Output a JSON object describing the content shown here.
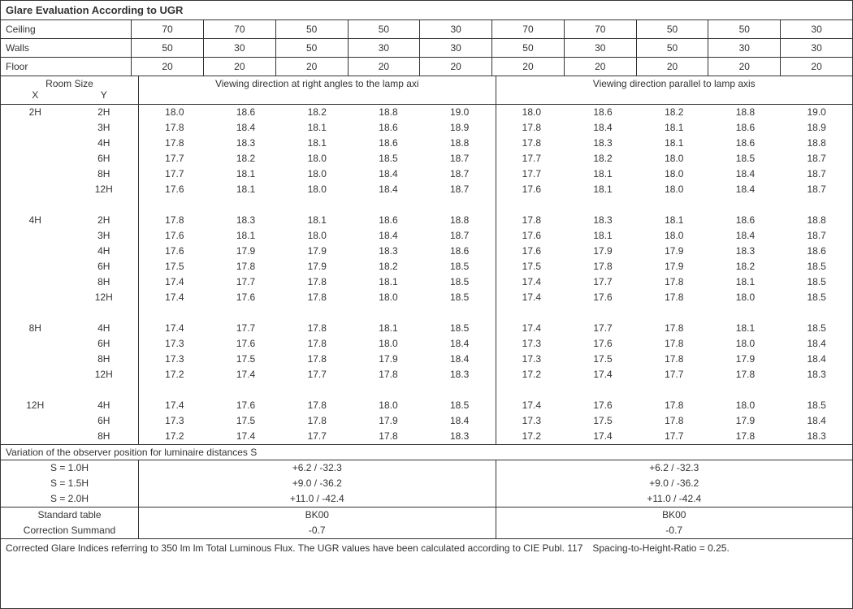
{
  "title": "Glare Evaluation According to UGR",
  "header": {
    "labels": [
      "Ceiling",
      "Walls",
      "Floor"
    ],
    "cols_left": [
      [
        "70",
        "70",
        "50",
        "50",
        "30"
      ],
      [
        "50",
        "30",
        "50",
        "30",
        "30"
      ],
      [
        "20",
        "20",
        "20",
        "20",
        "20"
      ]
    ],
    "cols_right": [
      [
        "70",
        "70",
        "50",
        "50",
        "30"
      ],
      [
        "50",
        "30",
        "50",
        "30",
        "30"
      ],
      [
        "20",
        "20",
        "20",
        "20",
        "20"
      ]
    ]
  },
  "room_size_label": "Room Size",
  "x_label": "X",
  "y_label": "Y",
  "viewing_left": "Viewing direction at right angles to the lamp axi",
  "viewing_right": "Viewing direction parallel to lamp axis",
  "groups": [
    {
      "x": "2H",
      "rows": [
        {
          "y": "2H",
          "l": [
            "18.0",
            "18.6",
            "18.2",
            "18.8",
            "19.0"
          ],
          "r": [
            "18.0",
            "18.6",
            "18.2",
            "18.8",
            "19.0"
          ]
        },
        {
          "y": "3H",
          "l": [
            "17.8",
            "18.4",
            "18.1",
            "18.6",
            "18.9"
          ],
          "r": [
            "17.8",
            "18.4",
            "18.1",
            "18.6",
            "18.9"
          ]
        },
        {
          "y": "4H",
          "l": [
            "17.8",
            "18.3",
            "18.1",
            "18.6",
            "18.8"
          ],
          "r": [
            "17.8",
            "18.3",
            "18.1",
            "18.6",
            "18.8"
          ]
        },
        {
          "y": "6H",
          "l": [
            "17.7",
            "18.2",
            "18.0",
            "18.5",
            "18.7"
          ],
          "r": [
            "17.7",
            "18.2",
            "18.0",
            "18.5",
            "18.7"
          ]
        },
        {
          "y": "8H",
          "l": [
            "17.7",
            "18.1",
            "18.0",
            "18.4",
            "18.7"
          ],
          "r": [
            "17.7",
            "18.1",
            "18.0",
            "18.4",
            "18.7"
          ]
        },
        {
          "y": "12H",
          "l": [
            "17.6",
            "18.1",
            "18.0",
            "18.4",
            "18.7"
          ],
          "r": [
            "17.6",
            "18.1",
            "18.0",
            "18.4",
            "18.7"
          ]
        }
      ]
    },
    {
      "x": "4H",
      "rows": [
        {
          "y": "2H",
          "l": [
            "17.8",
            "18.3",
            "18.1",
            "18.6",
            "18.8"
          ],
          "r": [
            "17.8",
            "18.3",
            "18.1",
            "18.6",
            "18.8"
          ]
        },
        {
          "y": "3H",
          "l": [
            "17.6",
            "18.1",
            "18.0",
            "18.4",
            "18.7"
          ],
          "r": [
            "17.6",
            "18.1",
            "18.0",
            "18.4",
            "18.7"
          ]
        },
        {
          "y": "4H",
          "l": [
            "17.6",
            "17.9",
            "17.9",
            "18.3",
            "18.6"
          ],
          "r": [
            "17.6",
            "17.9",
            "17.9",
            "18.3",
            "18.6"
          ]
        },
        {
          "y": "6H",
          "l": [
            "17.5",
            "17.8",
            "17.9",
            "18.2",
            "18.5"
          ],
          "r": [
            "17.5",
            "17.8",
            "17.9",
            "18.2",
            "18.5"
          ]
        },
        {
          "y": "8H",
          "l": [
            "17.4",
            "17.7",
            "17.8",
            "18.1",
            "18.5"
          ],
          "r": [
            "17.4",
            "17.7",
            "17.8",
            "18.1",
            "18.5"
          ]
        },
        {
          "y": "12H",
          "l": [
            "17.4",
            "17.6",
            "17.8",
            "18.0",
            "18.5"
          ],
          "r": [
            "17.4",
            "17.6",
            "17.8",
            "18.0",
            "18.5"
          ]
        }
      ]
    },
    {
      "x": "8H",
      "rows": [
        {
          "y": "4H",
          "l": [
            "17.4",
            "17.7",
            "17.8",
            "18.1",
            "18.5"
          ],
          "r": [
            "17.4",
            "17.7",
            "17.8",
            "18.1",
            "18.5"
          ]
        },
        {
          "y": "6H",
          "l": [
            "17.3",
            "17.6",
            "17.8",
            "18.0",
            "18.4"
          ],
          "r": [
            "17.3",
            "17.6",
            "17.8",
            "18.0",
            "18.4"
          ]
        },
        {
          "y": "8H",
          "l": [
            "17.3",
            "17.5",
            "17.8",
            "17.9",
            "18.4"
          ],
          "r": [
            "17.3",
            "17.5",
            "17.8",
            "17.9",
            "18.4"
          ]
        },
        {
          "y": "12H",
          "l": [
            "17.2",
            "17.4",
            "17.7",
            "17.8",
            "18.3"
          ],
          "r": [
            "17.2",
            "17.4",
            "17.7",
            "17.8",
            "18.3"
          ]
        }
      ]
    },
    {
      "x": "12H",
      "rows": [
        {
          "y": "4H",
          "l": [
            "17.4",
            "17.6",
            "17.8",
            "18.0",
            "18.5"
          ],
          "r": [
            "17.4",
            "17.6",
            "17.8",
            "18.0",
            "18.5"
          ]
        },
        {
          "y": "6H",
          "l": [
            "17.3",
            "17.5",
            "17.8",
            "17.9",
            "18.4"
          ],
          "r": [
            "17.3",
            "17.5",
            "17.8",
            "17.9",
            "18.4"
          ]
        },
        {
          "y": "8H",
          "l": [
            "17.2",
            "17.4",
            "17.7",
            "17.8",
            "18.3"
          ],
          "r": [
            "17.2",
            "17.4",
            "17.7",
            "17.8",
            "18.3"
          ]
        }
      ]
    }
  ],
  "variation_title": "Variation of the observer position for luminaire distances S",
  "variation": {
    "labels": [
      "S = 1.0H",
      "S = 1.5H",
      "S = 2.0H"
    ],
    "left": [
      "+6.2 / -32.3",
      "+9.0 / -36.2",
      "+11.0 / -42.4"
    ],
    "right": [
      "+6.2 / -32.3",
      "+9.0 / -36.2",
      "+11.0 / -42.4"
    ]
  },
  "standard": {
    "labels": [
      "Standard table",
      "Correction Summand"
    ],
    "left": [
      "BK00",
      "-0.7"
    ],
    "right": [
      "BK00",
      "-0.7"
    ]
  },
  "footnote": "Corrected Glare Indices referring to 350 lm lm Total Luminous Flux. The UGR values have been calculated according to CIE Publ. 117 Spacing-to-Height-Ratio = 0.25."
}
